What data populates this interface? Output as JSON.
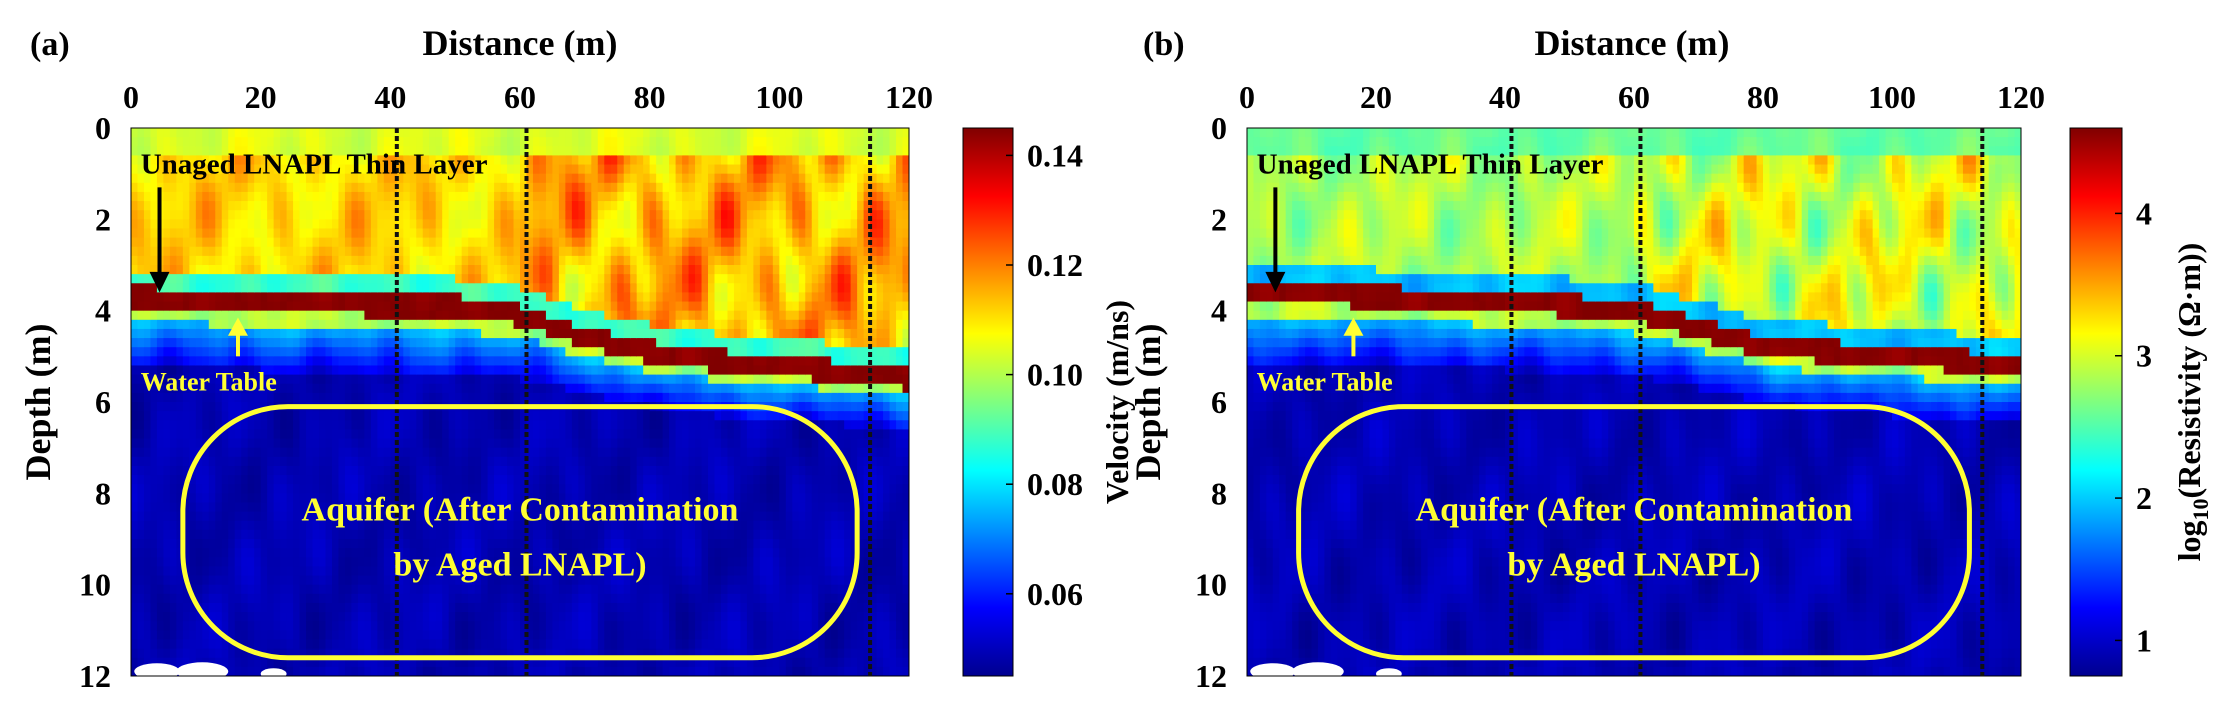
{
  "chart_data": [
    {
      "type": "heatmap",
      "panel_label": "(a)",
      "xlabel": "Distance (m)",
      "ylabel": "Depth (m)",
      "xlim": [
        0,
        120
      ],
      "ylim": [
        0,
        12
      ],
      "xticks": [
        0,
        20,
        40,
        60,
        80,
        100,
        120
      ],
      "yticks": [
        0,
        2,
        4,
        6,
        8,
        10,
        12
      ],
      "colorbar": {
        "label": "Velocity (m/ns)",
        "range": [
          0.045,
          0.145
        ],
        "ticks": [
          0.06,
          0.08,
          0.1,
          0.12,
          0.14
        ],
        "tick_labels": [
          "0.06",
          "0.08",
          "0.10",
          "0.12",
          "0.14"
        ]
      },
      "field": {
        "surface_value": 0.11,
        "upper_high_value": 0.125,
        "thin_layer_value": 0.145,
        "aquifer_value": 0.05,
        "thin_layer_profile": [
          [
            0,
            3.7
          ],
          [
            20,
            3.8
          ],
          [
            40,
            3.9
          ],
          [
            50,
            3.9
          ],
          [
            60,
            4.1
          ],
          [
            70,
            4.6
          ],
          [
            80,
            4.9
          ],
          [
            90,
            5.1
          ],
          [
            100,
            5.2
          ],
          [
            110,
            5.35
          ],
          [
            120,
            5.5
          ]
        ],
        "water_table_profile": [
          [
            0,
            4.5
          ],
          [
            20,
            4.5
          ],
          [
            40,
            4.6
          ],
          [
            60,
            4.7
          ],
          [
            70,
            5.0
          ],
          [
            80,
            5.3
          ],
          [
            90,
            5.5
          ],
          [
            100,
            5.6
          ],
          [
            120,
            5.8
          ]
        ]
      },
      "vertical_lines_x": [
        41,
        61,
        114
      ],
      "annotations": {
        "thin_layer": "Unaged LNAPL Thin Layer",
        "water_table": "Water Table",
        "aquifer_line1": "Aquifer (After Contamination",
        "aquifer_line2": "by Aged LNAPL)"
      }
    },
    {
      "type": "heatmap",
      "panel_label": "(b)",
      "xlabel": "Distance (m)",
      "ylabel": "Depth (m)",
      "xlim": [
        0,
        120
      ],
      "ylim": [
        0,
        12
      ],
      "xticks": [
        0,
        20,
        40,
        60,
        80,
        100,
        120
      ],
      "yticks": [
        0,
        2,
        4,
        6,
        8,
        10,
        12
      ],
      "colorbar": {
        "label": "log10(Resistivity (Ω·m))",
        "label_main": "log",
        "label_sub": "10",
        "label_rest": "(Resistivity (Ω·m))",
        "range": [
          0.75,
          4.6
        ],
        "ticks": [
          1,
          2,
          3,
          4
        ],
        "tick_labels": [
          "1",
          "2",
          "3",
          "4"
        ]
      },
      "field": {
        "surface_value": 2.8,
        "upper_high_value": 3.4,
        "thin_layer_value": 4.6,
        "aquifer_value": 0.95,
        "thin_layer_profile": [
          [
            0,
            3.6
          ],
          [
            20,
            3.7
          ],
          [
            40,
            3.8
          ],
          [
            50,
            3.9
          ],
          [
            60,
            4.0
          ],
          [
            70,
            4.4
          ],
          [
            80,
            4.8
          ],
          [
            90,
            4.9
          ],
          [
            100,
            5.0
          ],
          [
            110,
            5.1
          ],
          [
            120,
            5.2
          ]
        ],
        "water_table_profile": [
          [
            0,
            4.4
          ],
          [
            20,
            4.4
          ],
          [
            40,
            4.5
          ],
          [
            60,
            4.6
          ],
          [
            70,
            4.9
          ],
          [
            80,
            5.2
          ],
          [
            90,
            5.4
          ],
          [
            100,
            5.5
          ],
          [
            120,
            5.7
          ]
        ]
      },
      "vertical_lines_x": [
        41,
        61,
        114
      ],
      "annotations": {
        "thin_layer": "Unaged LNAPL Thin Layer",
        "water_table": "Water Table",
        "aquifer_line1": "Aquifer (After Contamination",
        "aquifer_line2": "by Aged LNAPL)"
      }
    }
  ]
}
